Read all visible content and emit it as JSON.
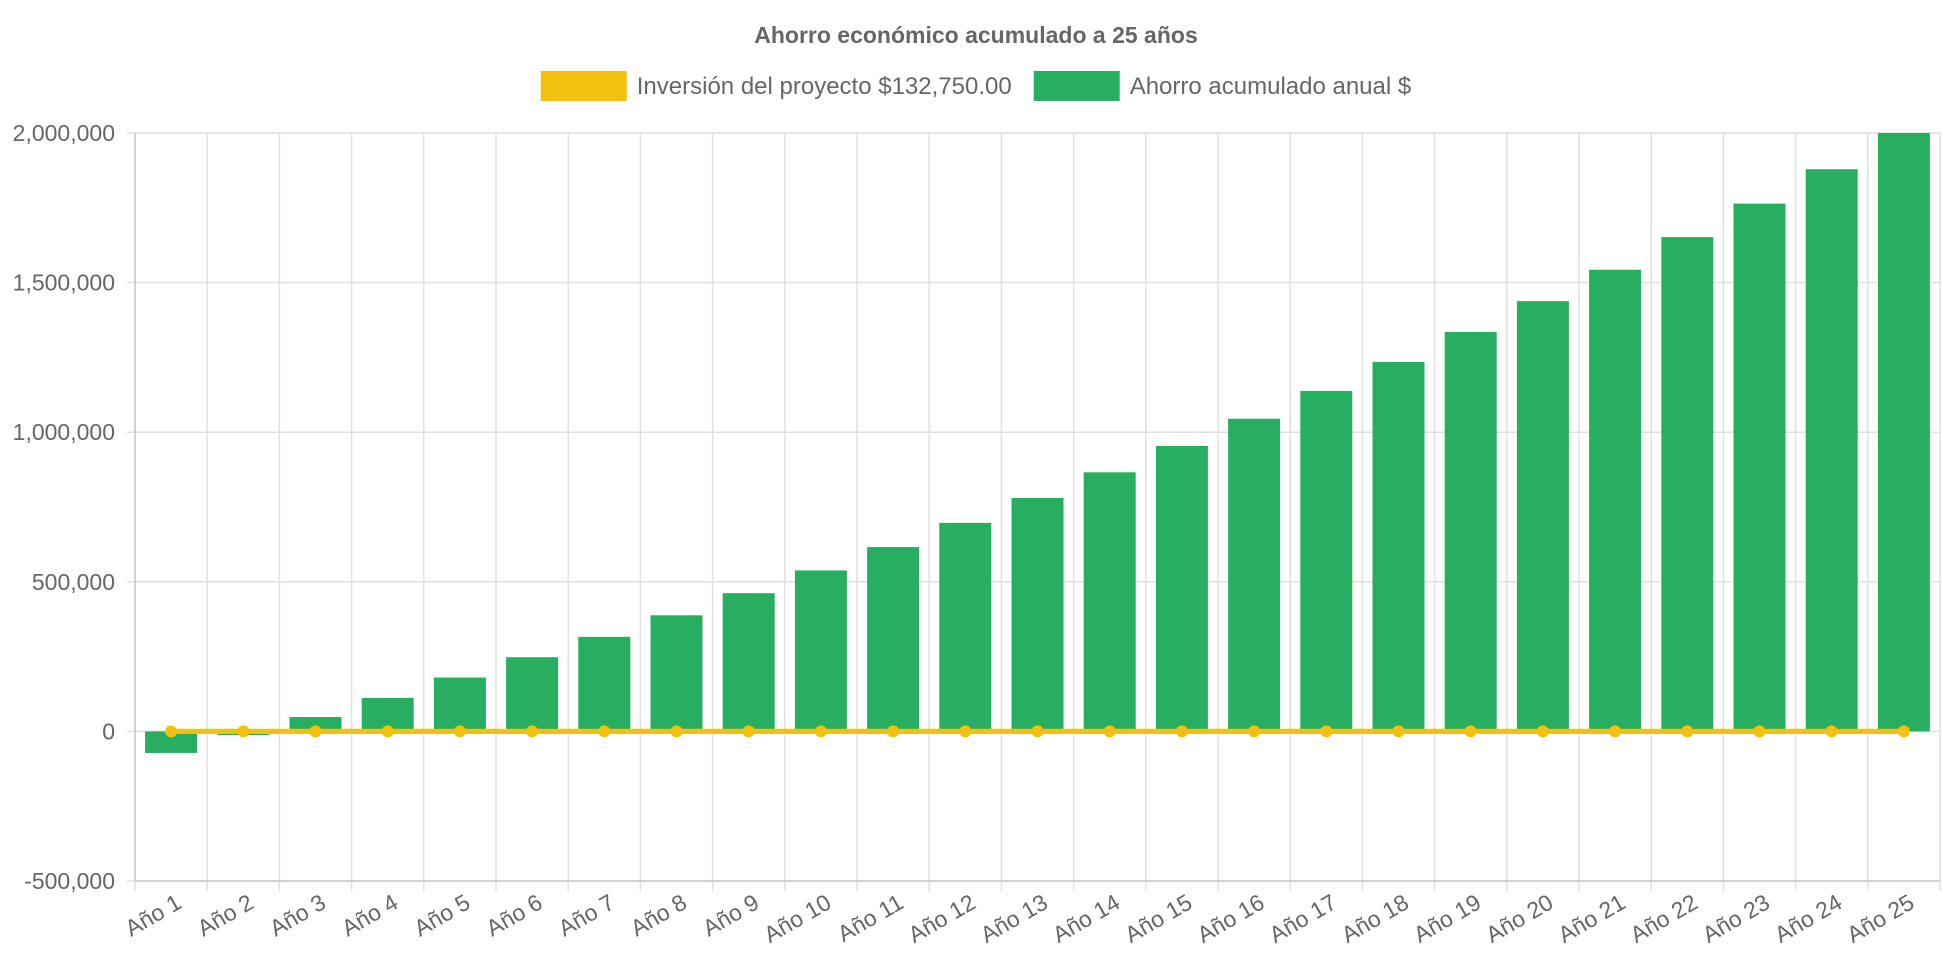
{
  "chart_data": {
    "type": "bar",
    "title": "Ahorro económico acumulado a 25 años",
    "categories": [
      "Año 1",
      "Año 2",
      "Año 3",
      "Año 4",
      "Año 5",
      "Año 6",
      "Año 7",
      "Año 8",
      "Año 9",
      "Año 10",
      "Año 11",
      "Año 12",
      "Año 13",
      "Año 14",
      "Año 15",
      "Año 16",
      "Año 17",
      "Año 18",
      "Año 19",
      "Año 20",
      "Año 21",
      "Año 22",
      "Año 23",
      "Año 24",
      "Año 25"
    ],
    "series": [
      {
        "name": "Inversión del proyecto $132,750.00",
        "type": "line",
        "color": "#f2c10f",
        "values": [
          0,
          0,
          0,
          0,
          0,
          0,
          0,
          0,
          0,
          0,
          0,
          0,
          0,
          0,
          0,
          0,
          0,
          0,
          0,
          0,
          0,
          0,
          0,
          0,
          0
        ]
      },
      {
        "name": "Ahorro acumulado anual $",
        "type": "bar",
        "color": "#27ae60",
        "values": [
          -72000,
          -12000,
          48000,
          112000,
          180000,
          248000,
          316000,
          388000,
          462000,
          538000,
          616000,
          697000,
          780000,
          866000,
          954000,
          1045000,
          1138000,
          1235000,
          1335000,
          1438000,
          1543000,
          1652000,
          1764000,
          1879000,
          2000000
        ]
      }
    ],
    "xlabel": "",
    "ylabel": "",
    "ylim": [
      -500000,
      2000000
    ],
    "yticks": [
      -500000,
      0,
      500000,
      1000000,
      1500000,
      2000000
    ],
    "ytick_labels": [
      "-500,000",
      "0",
      "500,000",
      "1,000,000",
      "1,500,000",
      "2,000,000"
    ],
    "grid": true,
    "legend_position": "top"
  }
}
